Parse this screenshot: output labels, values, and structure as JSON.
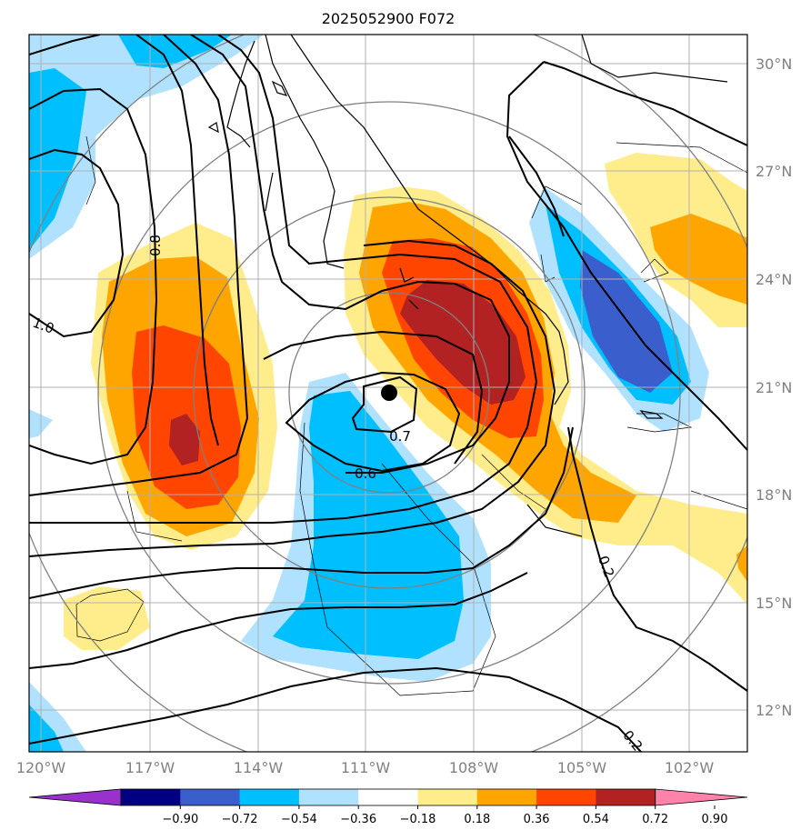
{
  "title": "2025052900 F072",
  "map": {
    "projection": "lat-lon",
    "lon_range": [
      -120.0,
      -100.7
    ],
    "lat_range": [
      10.9,
      30.8
    ],
    "lon_ticks": [
      "120°W",
      "117°W",
      "114°W",
      "111°W",
      "108°W",
      "105°W",
      "102°W"
    ],
    "lat_ticks": [
      "12°N",
      "15°N",
      "18°N",
      "21°N",
      "24°N",
      "27°N",
      "30°N"
    ],
    "center_marker": {
      "lon": -110.4,
      "lat": 20.8,
      "color": "#000000"
    }
  },
  "contour_labels": [
    {
      "text": "0.8",
      "lon": -114.8,
      "lat": 25.1
    },
    {
      "text": "1.0",
      "lon": -119.6,
      "lat": 22.5
    },
    {
      "text": "0.7",
      "lon": -109.9,
      "lat": 19.9
    },
    {
      "text": "0.6",
      "lon": -110.0,
      "lat": 18.6
    },
    {
      "text": "0.2",
      "lon": -104.5,
      "lat": 15.7
    },
    {
      "text": "0.2",
      "lon": -103.5,
      "lat": 11.3
    }
  ],
  "colorbar": {
    "colors": [
      "#9932cc",
      "#000080",
      "#3a5fcd",
      "#00bfff",
      "#b0e2ff",
      "#ffffff",
      "#ffec8b",
      "#ffa500",
      "#ff4500",
      "#b22222",
      "#ff82ab"
    ],
    "tick_labels": [
      "−0.90",
      "−0.72",
      "−0.54",
      "−0.36",
      "−0.18",
      "0.18",
      "0.36",
      "0.54",
      "0.72",
      "0.90"
    ]
  }
}
